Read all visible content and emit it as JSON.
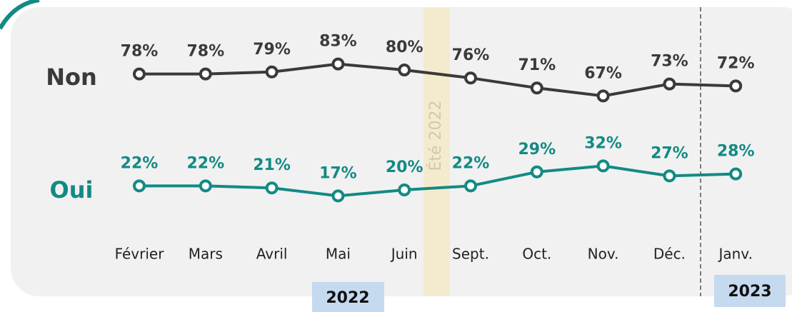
{
  "chart_data": {
    "type": "line",
    "categories": [
      "Février",
      "Mars",
      "Avril",
      "Mai",
      "Juin",
      "Sept.",
      "Oct.",
      "Nov.",
      "Déc.",
      "Janv."
    ],
    "series": [
      {
        "name": "Non",
        "color": "#3a3a3a",
        "values": [
          78,
          78,
          79,
          83,
          80,
          76,
          71,
          67,
          73,
          72
        ],
        "value_labels": [
          "78%",
          "78%",
          "79%",
          "83%",
          "80%",
          "76%",
          "71%",
          "67%",
          "73%",
          "72%"
        ]
      },
      {
        "name": "Oui",
        "color": "#138a84",
        "values": [
          22,
          22,
          21,
          17,
          20,
          22,
          29,
          32,
          27,
          28
        ],
        "value_labels": [
          "22%",
          "22%",
          "21%",
          "17%",
          "20%",
          "22%",
          "29%",
          "32%",
          "27%",
          "28%"
        ]
      }
    ],
    "annotations": [
      "Été 2022",
      "2022",
      "2023"
    ]
  }
}
